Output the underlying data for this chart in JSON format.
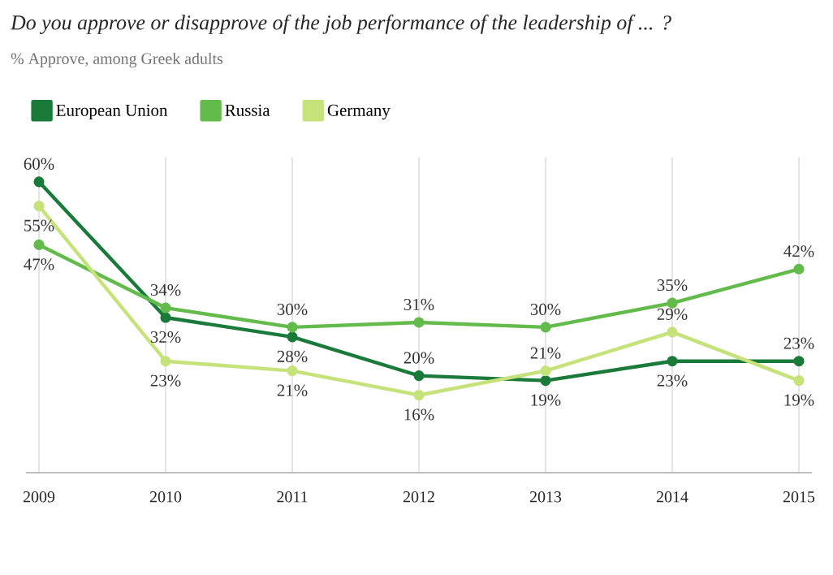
{
  "chart_data": {
    "type": "line",
    "title": "Do you approve or disapprove of the job performance of the leadership of ... ?",
    "subtitle": "% Approve, among Greek adults",
    "categories": [
      "2009",
      "2010",
      "2011",
      "2012",
      "2013",
      "2014",
      "2015"
    ],
    "series": [
      {
        "name": "European Union",
        "color": "#1a7a3a",
        "values": [
          60,
          32,
          28,
          20,
          19,
          23,
          23
        ],
        "value_labels": [
          "60%",
          "32%",
          "28%",
          "20%",
          "19%",
          "23%",
          "23%"
        ]
      },
      {
        "name": "Russia",
        "color": "#63bb4c",
        "values": [
          47,
          34,
          30,
          31,
          30,
          35,
          42
        ],
        "value_labels": [
          "47%",
          "34%",
          "30%",
          "31%",
          "30%",
          "35%",
          "42%"
        ]
      },
      {
        "name": "Germany",
        "color": "#c6e27a",
        "values": [
          55,
          23,
          21,
          16,
          21,
          29,
          19
        ],
        "value_labels": [
          "55%",
          "23%",
          "21%",
          "16%",
          "21%",
          "29%",
          "19%"
        ]
      }
    ],
    "ylim": [
      0,
      65
    ],
    "grid": "x",
    "legend": "top left",
    "marker": "circle",
    "line_style": "solid",
    "tick_labels": "x"
  }
}
